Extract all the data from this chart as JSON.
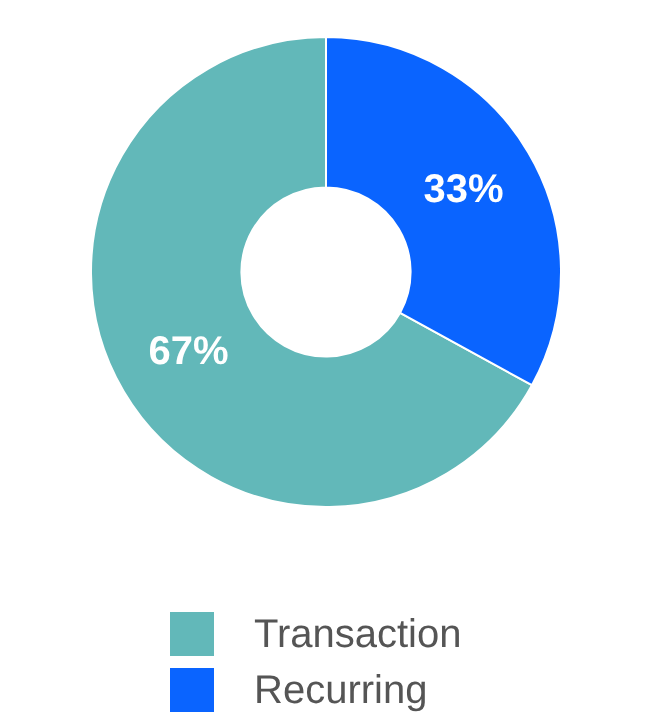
{
  "chart_data": {
    "type": "donut",
    "categories": [
      "Transaction",
      "Recurring"
    ],
    "values": [
      67,
      33
    ],
    "colors": [
      "#62b8b9",
      "#0a64ff"
    ],
    "value_labels": [
      "67%",
      "33%"
    ],
    "legend": "bottom"
  }
}
